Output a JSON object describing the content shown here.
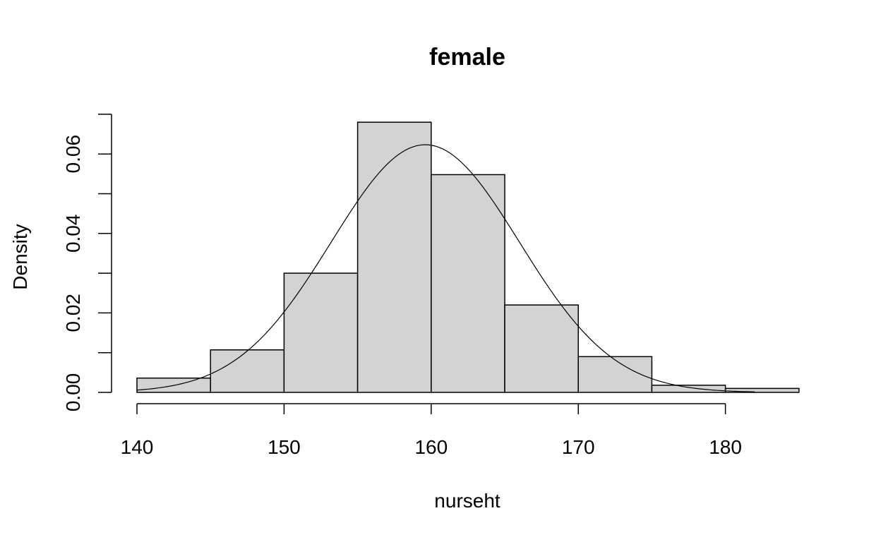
{
  "chart_data": {
    "type": "bar",
    "title": "female",
    "xlabel": "nurseht",
    "ylabel": "Density",
    "bins": [
      {
        "x0": 140,
        "x1": 145,
        "density": 0.0036
      },
      {
        "x0": 145,
        "x1": 150,
        "density": 0.0107
      },
      {
        "x0": 150,
        "x1": 155,
        "density": 0.03
      },
      {
        "x0": 155,
        "x1": 160,
        "density": 0.068
      },
      {
        "x0": 160,
        "x1": 165,
        "density": 0.0548
      },
      {
        "x0": 165,
        "x1": 170,
        "density": 0.022
      },
      {
        "x0": 170,
        "x1": 175,
        "density": 0.009
      },
      {
        "x0": 175,
        "x1": 180,
        "density": 0.0018
      },
      {
        "x0": 180,
        "x1": 185,
        "density": 0.001
      }
    ],
    "density_curve": {
      "type": "normal",
      "mean": 159.6,
      "sd": 6.4
    },
    "x_ticks": [
      140,
      150,
      160,
      170,
      180
    ],
    "y_ticks": [
      0.0,
      0.02,
      0.04,
      0.06
    ],
    "y_tick_labels": [
      "0.00",
      "0.02",
      "0.04",
      "0.06"
    ],
    "xlim": [
      140,
      185
    ],
    "ylim": [
      0,
      0.07
    ],
    "grid": false
  }
}
